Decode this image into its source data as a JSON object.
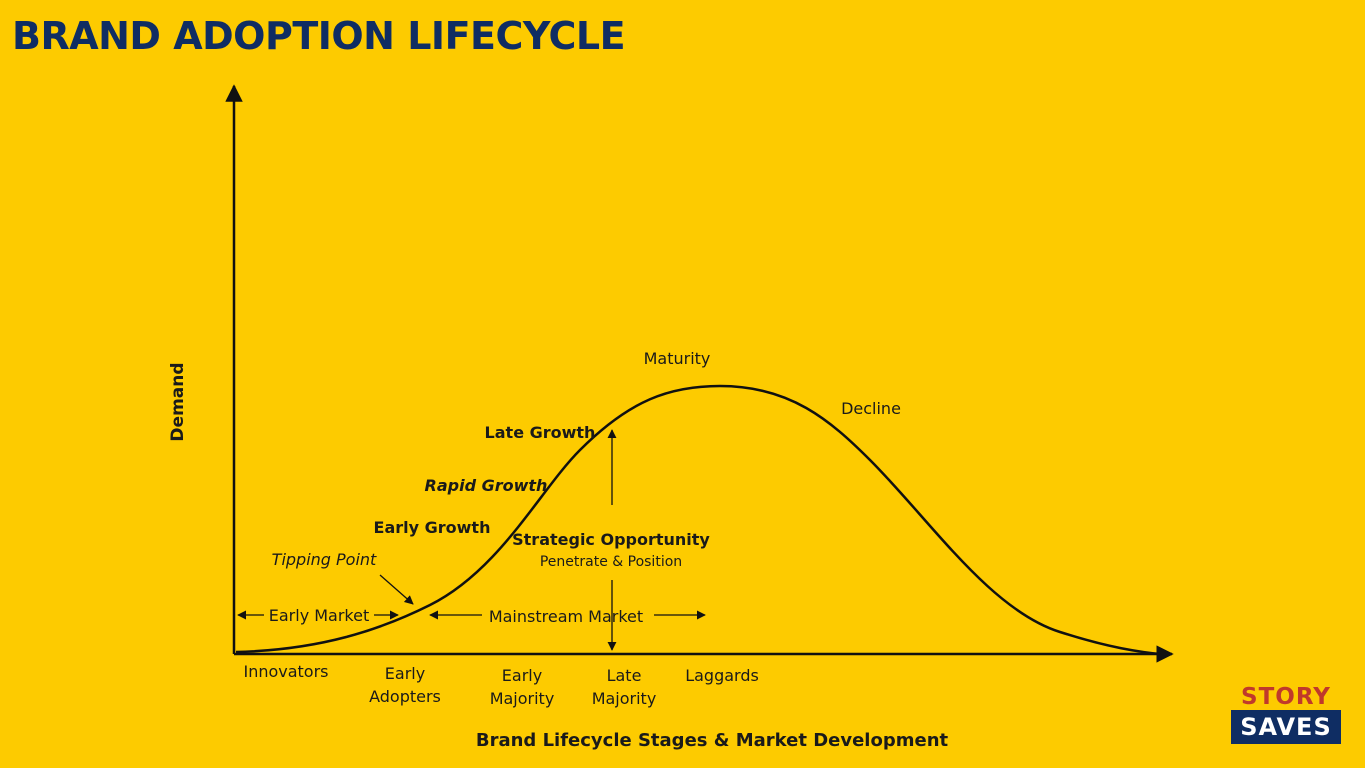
{
  "title": "BRAND ADOPTION LIFECYCLE",
  "axes": {
    "y_label": "Demand",
    "x_label": "Brand Lifecycle Stages & Market Development"
  },
  "segments": {
    "innovators": "Innovators",
    "early_adopters": [
      "Early",
      "Adopters"
    ],
    "early_majority": [
      "Early",
      "Majority"
    ],
    "late_majority": [
      "Late",
      "Majority"
    ],
    "laggards": "Laggards"
  },
  "curve_labels": {
    "tipping_point": "Tipping Point",
    "early_growth": "Early Growth",
    "rapid_growth": "Rapid Growth",
    "late_growth": "Late Growth",
    "maturity": "Maturity",
    "decline": "Decline"
  },
  "markets": {
    "early_market": "Early Market",
    "mainstream_market": "Mainstream Market"
  },
  "strategic": {
    "title": "Strategic Opportunity",
    "subtitle": "Penetrate & Position"
  },
  "logo": {
    "top": "STORY",
    "bottom": "SAVES"
  },
  "colors": {
    "background": "#FDCB00",
    "title": "#0F2D63",
    "logo_red": "#C0392B",
    "logo_navy": "#0F2D63"
  }
}
